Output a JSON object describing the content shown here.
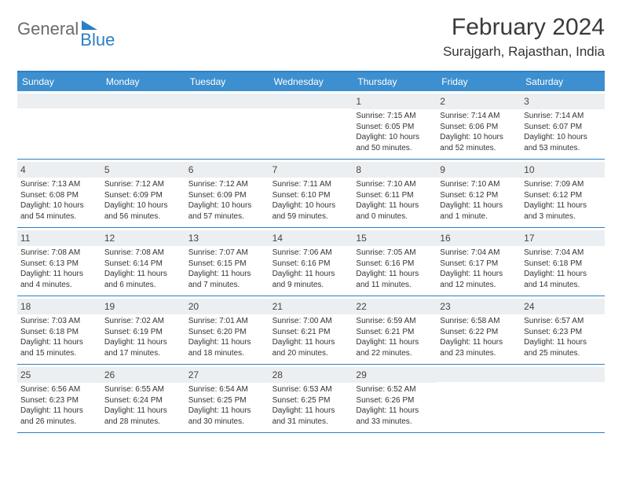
{
  "logo": {
    "word1": "General",
    "word2": "Blue"
  },
  "title": "February 2024",
  "location": "Surajgarh, Rajasthan, India",
  "weekdays": [
    "Sunday",
    "Monday",
    "Tuesday",
    "Wednesday",
    "Thursday",
    "Friday",
    "Saturday"
  ],
  "colors": {
    "brand_blue": "#2b7fc4",
    "header_bg": "#3d8fcf",
    "daynum_bg": "#eceff1",
    "text": "#333333",
    "logo_gray": "#6b6b6b"
  },
  "weeks": [
    [
      {
        "blank": true
      },
      {
        "blank": true
      },
      {
        "blank": true
      },
      {
        "blank": true
      },
      {
        "n": "1",
        "sr": "7:15 AM",
        "ss": "6:05 PM",
        "dl": "10 hours and 50 minutes."
      },
      {
        "n": "2",
        "sr": "7:14 AM",
        "ss": "6:06 PM",
        "dl": "10 hours and 52 minutes."
      },
      {
        "n": "3",
        "sr": "7:14 AM",
        "ss": "6:07 PM",
        "dl": "10 hours and 53 minutes."
      }
    ],
    [
      {
        "n": "4",
        "sr": "7:13 AM",
        "ss": "6:08 PM",
        "dl": "10 hours and 54 minutes."
      },
      {
        "n": "5",
        "sr": "7:12 AM",
        "ss": "6:09 PM",
        "dl": "10 hours and 56 minutes."
      },
      {
        "n": "6",
        "sr": "7:12 AM",
        "ss": "6:09 PM",
        "dl": "10 hours and 57 minutes."
      },
      {
        "n": "7",
        "sr": "7:11 AM",
        "ss": "6:10 PM",
        "dl": "10 hours and 59 minutes."
      },
      {
        "n": "8",
        "sr": "7:10 AM",
        "ss": "6:11 PM",
        "dl": "11 hours and 0 minutes."
      },
      {
        "n": "9",
        "sr": "7:10 AM",
        "ss": "6:12 PM",
        "dl": "11 hours and 1 minute."
      },
      {
        "n": "10",
        "sr": "7:09 AM",
        "ss": "6:12 PM",
        "dl": "11 hours and 3 minutes."
      }
    ],
    [
      {
        "n": "11",
        "sr": "7:08 AM",
        "ss": "6:13 PM",
        "dl": "11 hours and 4 minutes."
      },
      {
        "n": "12",
        "sr": "7:08 AM",
        "ss": "6:14 PM",
        "dl": "11 hours and 6 minutes."
      },
      {
        "n": "13",
        "sr": "7:07 AM",
        "ss": "6:15 PM",
        "dl": "11 hours and 7 minutes."
      },
      {
        "n": "14",
        "sr": "7:06 AM",
        "ss": "6:16 PM",
        "dl": "11 hours and 9 minutes."
      },
      {
        "n": "15",
        "sr": "7:05 AM",
        "ss": "6:16 PM",
        "dl": "11 hours and 11 minutes."
      },
      {
        "n": "16",
        "sr": "7:04 AM",
        "ss": "6:17 PM",
        "dl": "11 hours and 12 minutes."
      },
      {
        "n": "17",
        "sr": "7:04 AM",
        "ss": "6:18 PM",
        "dl": "11 hours and 14 minutes."
      }
    ],
    [
      {
        "n": "18",
        "sr": "7:03 AM",
        "ss": "6:18 PM",
        "dl": "11 hours and 15 minutes."
      },
      {
        "n": "19",
        "sr": "7:02 AM",
        "ss": "6:19 PM",
        "dl": "11 hours and 17 minutes."
      },
      {
        "n": "20",
        "sr": "7:01 AM",
        "ss": "6:20 PM",
        "dl": "11 hours and 18 minutes."
      },
      {
        "n": "21",
        "sr": "7:00 AM",
        "ss": "6:21 PM",
        "dl": "11 hours and 20 minutes."
      },
      {
        "n": "22",
        "sr": "6:59 AM",
        "ss": "6:21 PM",
        "dl": "11 hours and 22 minutes."
      },
      {
        "n": "23",
        "sr": "6:58 AM",
        "ss": "6:22 PM",
        "dl": "11 hours and 23 minutes."
      },
      {
        "n": "24",
        "sr": "6:57 AM",
        "ss": "6:23 PM",
        "dl": "11 hours and 25 minutes."
      }
    ],
    [
      {
        "n": "25",
        "sr": "6:56 AM",
        "ss": "6:23 PM",
        "dl": "11 hours and 26 minutes."
      },
      {
        "n": "26",
        "sr": "6:55 AM",
        "ss": "6:24 PM",
        "dl": "11 hours and 28 minutes."
      },
      {
        "n": "27",
        "sr": "6:54 AM",
        "ss": "6:25 PM",
        "dl": "11 hours and 30 minutes."
      },
      {
        "n": "28",
        "sr": "6:53 AM",
        "ss": "6:25 PM",
        "dl": "11 hours and 31 minutes."
      },
      {
        "n": "29",
        "sr": "6:52 AM",
        "ss": "6:26 PM",
        "dl": "11 hours and 33 minutes."
      },
      {
        "blank": true
      },
      {
        "blank": true
      }
    ]
  ],
  "labels": {
    "sunrise": "Sunrise:",
    "sunset": "Sunset:",
    "daylight": "Daylight:"
  }
}
